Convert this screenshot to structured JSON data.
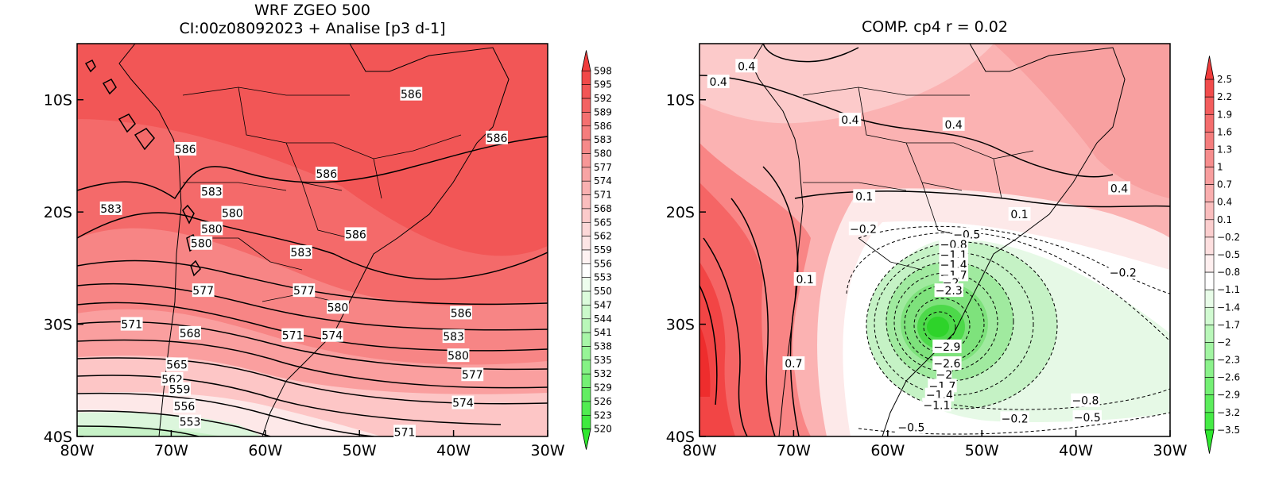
{
  "panels": [
    {
      "id": "left",
      "title": "WRF ZGEO 500",
      "subtitle": "CI:00z08092023 + Analise  [p3 d-1]",
      "xticks": [
        "80W",
        "70W",
        "60W",
        "50W",
        "40W",
        "30W"
      ],
      "yticks": [
        "10S",
        "20S",
        "30S",
        "40S"
      ],
      "colorbar": [
        "598",
        "595",
        "592",
        "589",
        "586",
        "583",
        "580",
        "577",
        "574",
        "571",
        "568",
        "565",
        "562",
        "559",
        "556",
        "553",
        "550",
        "547",
        "544",
        "541",
        "538",
        "535",
        "532",
        "529",
        "526",
        "523",
        "520"
      ],
      "colors": {
        "high": "#f03c3c",
        "mid": "#ffffff",
        "low": "#2ee82e"
      },
      "contour_labels": [
        {
          "text": "586",
          "lon": -44.5,
          "lat": -9.5
        },
        {
          "text": "586",
          "lon": -68.5,
          "lat": -14.4
        },
        {
          "text": "586",
          "lon": -35.4,
          "lat": -13.4
        },
        {
          "text": "586",
          "lon": -53.5,
          "lat": -16.6
        },
        {
          "text": "583",
          "lon": -65.7,
          "lat": -18.2
        },
        {
          "text": "583",
          "lon": -76.4,
          "lat": -19.7
        },
        {
          "text": "580",
          "lon": -63.5,
          "lat": -20.1
        },
        {
          "text": "580",
          "lon": -65.7,
          "lat": -21.5
        },
        {
          "text": "580",
          "lon": -66.8,
          "lat": -22.8
        },
        {
          "text": "586",
          "lon": -50.4,
          "lat": -22.0
        },
        {
          "text": "583",
          "lon": -56.2,
          "lat": -23.6
        },
        {
          "text": "577",
          "lon": -55.9,
          "lat": -27.0
        },
        {
          "text": "577",
          "lon": -66.6,
          "lat": -27.0
        },
        {
          "text": "580",
          "lon": -52.3,
          "lat": -28.5
        },
        {
          "text": "586",
          "lon": -39.2,
          "lat": -29.0
        },
        {
          "text": "571",
          "lon": -74.2,
          "lat": -30.0
        },
        {
          "text": "568",
          "lon": -68.0,
          "lat": -30.8
        },
        {
          "text": "571",
          "lon": -57.1,
          "lat": -31.0
        },
        {
          "text": "574",
          "lon": -52.9,
          "lat": -31.0
        },
        {
          "text": "583",
          "lon": -40.0,
          "lat": -31.1
        },
        {
          "text": "580",
          "lon": -39.5,
          "lat": -32.8
        },
        {
          "text": "565",
          "lon": -69.4,
          "lat": -33.6
        },
        {
          "text": "577",
          "lon": -38.0,
          "lat": -34.5
        },
        {
          "text": "562",
          "lon": -69.9,
          "lat": -34.9
        },
        {
          "text": "559",
          "lon": -69.1,
          "lat": -35.8
        },
        {
          "text": "556",
          "lon": -68.6,
          "lat": -37.3
        },
        {
          "text": "574",
          "lon": -39.0,
          "lat": -37.0
        },
        {
          "text": "553",
          "lon": -68.0,
          "lat": -38.7
        },
        {
          "text": "571",
          "lon": -45.2,
          "lat": -39.6
        }
      ]
    },
    {
      "id": "right",
      "title": "COMP. cp4  r =  0.02",
      "xticks": [
        "80W",
        "70W",
        "60W",
        "50W",
        "40W",
        "30W"
      ],
      "yticks": [
        "10S",
        "20S",
        "30S",
        "40S"
      ],
      "colorbar": [
        "2.5",
        "2.2",
        "1.9",
        "1.6",
        "1.3",
        "1",
        "0.7",
        "0.4",
        "0.1",
        "−0.2",
        "−0.5",
        "−0.8",
        "−1.1",
        "−1.4",
        "−1.7",
        "−2",
        "−2.3",
        "−2.6",
        "−2.9",
        "−3.2",
        "−3.5"
      ],
      "colors": {
        "high": "#f03c3c",
        "mid": "#ffffff",
        "low": "#2ee82e"
      },
      "contour_labels": [
        {
          "text": "0.4",
          "lon": -75.0,
          "lat": -7.0
        },
        {
          "text": "0.4",
          "lon": -78.0,
          "lat": -8.4
        },
        {
          "text": "0.4",
          "lon": -64.0,
          "lat": -11.8
        },
        {
          "text": "0.4",
          "lon": -53.0,
          "lat": -12.2
        },
        {
          "text": "0.4",
          "lon": -35.4,
          "lat": -17.9
        },
        {
          "text": "0.1",
          "lon": -62.5,
          "lat": -18.6
        },
        {
          "text": "0.1",
          "lon": -46.0,
          "lat": -20.2
        },
        {
          "text": "−0.2",
          "lon": -62.6,
          "lat": -21.5
        },
        {
          "text": "−0.5",
          "lon": -51.6,
          "lat": -22.0
        },
        {
          "text": "−0.8",
          "lon": -53.0,
          "lat": -22.9
        },
        {
          "text": "−1.1",
          "lon": -53.0,
          "lat": -23.8
        },
        {
          "text": "−1.4",
          "lon": -53.0,
          "lat": -24.7
        },
        {
          "text": "−1.7",
          "lon": -53.0,
          "lat": -25.6
        },
        {
          "text": "−2",
          "lon": -53.3,
          "lat": -26.3
        },
        {
          "text": "−2.3",
          "lon": -53.5,
          "lat": -27.0
        },
        {
          "text": "0.1",
          "lon": -68.8,
          "lat": -26.0
        },
        {
          "text": "−0.2",
          "lon": -35.0,
          "lat": -25.4
        },
        {
          "text": "−2.9",
          "lon": -53.7,
          "lat": -32.0
        },
        {
          "text": "−2.6",
          "lon": -53.7,
          "lat": -33.5
        },
        {
          "text": "0.7",
          "lon": -70.0,
          "lat": -33.5
        },
        {
          "text": "−2",
          "lon": -54.0,
          "lat": -34.5
        },
        {
          "text": "−1.7",
          "lon": -54.2,
          "lat": -35.5
        },
        {
          "text": "−1.4",
          "lon": -54.5,
          "lat": -36.3
        },
        {
          "text": "−1.1",
          "lon": -54.8,
          "lat": -37.2
        },
        {
          "text": "−0.8",
          "lon": -39.0,
          "lat": -36.8
        },
        {
          "text": "−0.5",
          "lon": -38.8,
          "lat": -38.3
        },
        {
          "text": "−0.2",
          "lon": -46.5,
          "lat": -38.4
        },
        {
          "text": "−0.5",
          "lon": -57.5,
          "lat": -39.2
        }
      ]
    }
  ]
}
